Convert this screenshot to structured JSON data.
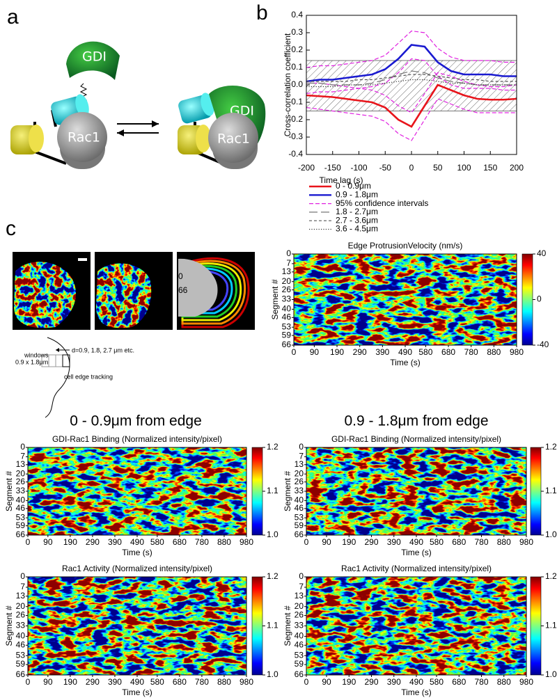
{
  "panel_labels": [
    "a",
    "b",
    "c"
  ],
  "diagram": {
    "labels": [
      "GDI",
      "Rac1",
      "GDI",
      "Rac1"
    ]
  },
  "cell_images": {
    "labels": [
      "0",
      "66"
    ]
  },
  "schematic": {
    "labels": [
      "d=0.9, 1.8, 2.7 μm etc.",
      "windows",
      "0.9 x 1.8μm",
      "cell edge tracking"
    ]
  },
  "column_headings": [
    "0 - 0.9μm from edge",
    "0.9 - 1.8μm from edge"
  ],
  "chart_data": [
    {
      "type": "line",
      "xlabel": "Time lag (s)",
      "ylabel": "Cross-correlation coefficient",
      "x": [
        -200,
        -175,
        -150,
        -125,
        -100,
        -75,
        -50,
        -25,
        0,
        25,
        50,
        75,
        100,
        125,
        150,
        175,
        200
      ],
      "xlim": [
        -200,
        200
      ],
      "xticks": [
        -200,
        -150,
        -100,
        -50,
        0,
        50,
        100,
        150,
        200
      ],
      "ylim": [
        -0.4,
        0.4
      ],
      "yticks": [
        -0.4,
        -0.3,
        -0.2,
        -0.1,
        {
          "value": 0,
          "label": "0.0"
        },
        0.1,
        0.2,
        0.3,
        0.4
      ],
      "band": [
        -0.15,
        0.14
      ],
      "series": [
        {
          "name": "0 - 0.9μm",
          "color": "#e8141b",
          "style": "solid",
          "values": [
            -0.06,
            -0.065,
            -0.07,
            -0.08,
            -0.09,
            -0.1,
            -0.13,
            -0.2,
            -0.24,
            -0.12,
            0.0,
            -0.03,
            -0.06,
            -0.08,
            -0.085,
            -0.085,
            -0.08
          ]
        },
        {
          "name": "0.9 - 1.8μm",
          "color": "#1a1ad0",
          "style": "solid",
          "values": [
            0.02,
            0.03,
            0.03,
            0.04,
            0.05,
            0.06,
            0.09,
            0.15,
            0.23,
            0.22,
            0.13,
            0.08,
            0.06,
            0.06,
            0.06,
            0.05,
            0.05
          ]
        },
        {
          "name": "95% confidence intervals",
          "color": "#e020e0",
          "style": "dashed",
          "values": [
            0.1,
            0.11,
            0.11,
            0.12,
            0.13,
            0.14,
            0.17,
            0.24,
            0.31,
            0.3,
            0.21,
            0.16,
            0.14,
            0.14,
            0.14,
            0.13,
            0.13
          ]
        },
        {
          "color": "#e020e0",
          "style": "dashed",
          "values": [
            -0.05,
            -0.04,
            -0.04,
            -0.03,
            -0.02,
            -0.01,
            0.01,
            0.07,
            0.15,
            0.14,
            0.05,
            0.0,
            -0.02,
            -0.02,
            -0.02,
            -0.03,
            -0.03
          ]
        },
        {
          "color": "#e020e0",
          "style": "dashed",
          "values": [
            0.01,
            0.01,
            0.0,
            -0.01,
            -0.02,
            -0.03,
            -0.06,
            -0.12,
            -0.16,
            -0.05,
            0.07,
            0.05,
            0.02,
            0.0,
            -0.01,
            -0.01,
            0.0
          ]
        },
        {
          "color": "#e020e0",
          "style": "dashed",
          "values": [
            -0.13,
            -0.14,
            -0.15,
            -0.16,
            -0.17,
            -0.18,
            -0.21,
            -0.28,
            -0.32,
            -0.2,
            -0.08,
            -0.11,
            -0.14,
            -0.16,
            -0.16,
            -0.16,
            -0.16
          ]
        },
        {
          "name": "1.8 - 2.7μm",
          "color": "#777777",
          "style": "long-dash",
          "values": [
            0.01,
            0.01,
            0.0,
            0.0,
            0.0,
            0.01,
            0.03,
            0.06,
            0.08,
            0.07,
            0.04,
            0.02,
            0.01,
            0.0,
            0.0,
            0.0,
            0.0
          ]
        },
        {
          "name": "2.7 - 3.6μm",
          "color": "#555555",
          "style": "short-dash",
          "values": [
            0.02,
            0.02,
            0.02,
            0.02,
            0.03,
            0.03,
            0.04,
            0.05,
            0.06,
            0.06,
            0.05,
            0.04,
            0.03,
            0.03,
            0.02,
            0.02,
            0.02
          ]
        },
        {
          "name": "3.6 - 4.5μm",
          "color": "#333333",
          "style": "dotted",
          "values": [
            -0.01,
            -0.01,
            -0.01,
            0.0,
            0.0,
            0.0,
            0.01,
            0.02,
            0.03,
            0.03,
            0.02,
            0.01,
            0.01,
            0.0,
            0.0,
            0.0,
            0.0
          ]
        }
      ]
    },
    {
      "type": "heatmap",
      "title": "Edge ProtrusionVelocity (nm/s)",
      "xlabel": "Time (s)",
      "ylabel": "Segment #",
      "colormap": "jet",
      "xlim": [
        0,
        980
      ],
      "xticks": [
        0,
        90,
        190,
        290,
        390,
        490,
        580,
        680,
        780,
        880,
        980
      ],
      "ylim": [
        0,
        66
      ],
      "invert_y": true,
      "yticks": [
        0,
        7,
        13,
        20,
        26,
        33,
        40,
        46,
        53,
        59,
        66
      ],
      "colorbar": {
        "lim": [
          -40,
          40
        ],
        "ticks": [
          -40,
          0,
          40
        ]
      }
    },
    {
      "type": "heatmap",
      "title": "GDI-Rac1 Binding (Normalized intensity/pixel)",
      "xlabel": "Time (s)",
      "ylabel": "Segment #",
      "colormap": "jet",
      "xlim": [
        0,
        980
      ],
      "xticks": [
        0,
        90,
        190,
        290,
        390,
        490,
        580,
        680,
        780,
        880,
        980
      ],
      "ylim": [
        0,
        66
      ],
      "invert_y": true,
      "yticks": [
        0,
        7,
        13,
        20,
        26,
        33,
        40,
        46,
        53,
        59,
        66
      ],
      "colorbar": {
        "lim": [
          1,
          1.2
        ],
        "ticks": [
          {
            "value": 1,
            "label": "1.0"
          },
          1.1,
          1.2
        ]
      }
    },
    {
      "type": "heatmap",
      "title": "GDI-Rac1 Binding (Normalized intensity/pixel)",
      "xlabel": "Time (s)",
      "ylabel": "Segment #",
      "colormap": "jet",
      "xlim": [
        0,
        980
      ],
      "xticks": [
        0,
        90,
        190,
        290,
        390,
        490,
        580,
        680,
        780,
        880,
        980
      ],
      "ylim": [
        0,
        66
      ],
      "invert_y": true,
      "yticks": [
        0,
        7,
        13,
        20,
        26,
        33,
        40,
        46,
        53,
        59,
        66
      ],
      "colorbar": {
        "lim": [
          1,
          1.2
        ],
        "ticks": [
          {
            "value": 1,
            "label": "1.0"
          },
          1.1,
          1.2
        ]
      }
    },
    {
      "type": "heatmap",
      "title": "Rac1 Activity (Normalized intensity/pixel)",
      "xlabel": "Time (s)",
      "ylabel": "Segment #",
      "colormap": "jet",
      "xlim": [
        0,
        980
      ],
      "xticks": [
        0,
        90,
        190,
        290,
        390,
        490,
        580,
        680,
        780,
        880,
        980
      ],
      "ylim": [
        0,
        66
      ],
      "invert_y": true,
      "yticks": [
        0,
        7,
        13,
        20,
        26,
        33,
        40,
        46,
        53,
        59,
        66
      ],
      "colorbar": {
        "lim": [
          1,
          1.2
        ],
        "ticks": [
          {
            "value": 1,
            "label": "1.0"
          },
          1.1,
          1.2
        ]
      }
    },
    {
      "type": "heatmap",
      "title": "Rac1 Activity (Normalized intensity/pixel)",
      "xlabel": "Time (s)",
      "ylabel": "Segment #",
      "colormap": "jet",
      "xlim": [
        0,
        980
      ],
      "xticks": [
        0,
        90,
        190,
        290,
        390,
        490,
        580,
        680,
        780,
        880,
        980
      ],
      "ylim": [
        0,
        66
      ],
      "invert_y": true,
      "yticks": [
        0,
        7,
        13,
        20,
        26,
        33,
        40,
        46,
        53,
        59,
        66
      ],
      "colorbar": {
        "lim": [
          1,
          1.2
        ],
        "ticks": [
          {
            "value": 1,
            "label": "1.0"
          },
          1.1,
          1.2
        ]
      }
    }
  ]
}
